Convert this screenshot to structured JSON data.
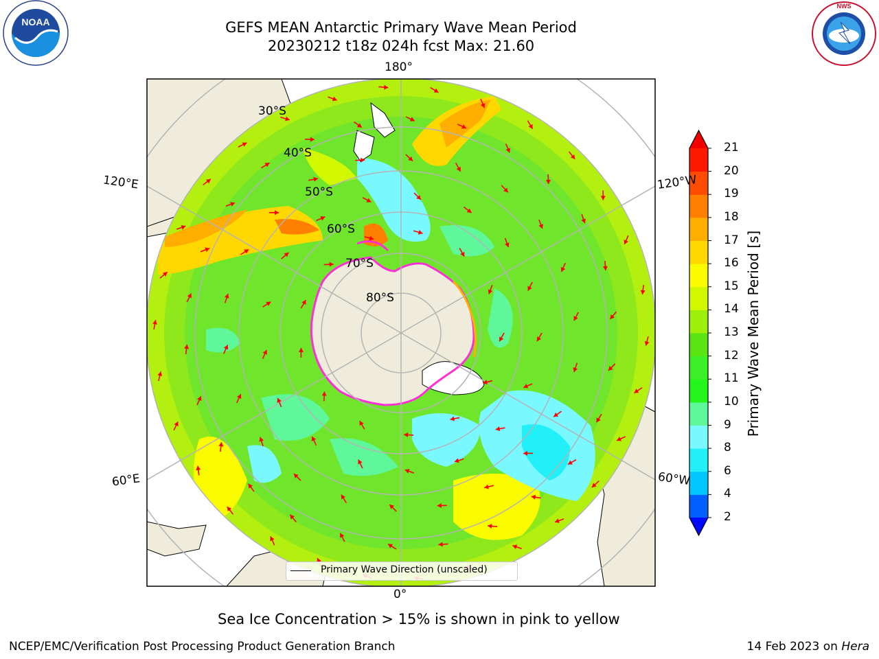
{
  "title": {
    "line1": "GEFS MEAN Antarctic Primary Wave Mean Period",
    "line2": "20230212 t18z 024h fcst   Max: 21.60"
  },
  "logos": {
    "left": {
      "name": "NOAA",
      "text": "NOAA",
      "ring_text": "NATIONAL OCEANIC AND ATMOSPHERIC ADMINISTRATION · U.S. DEPARTMENT OF COMMERCE"
    },
    "right": {
      "name": "National Weather Service",
      "ring_text": "NATIONAL WEATHER SERVICE"
    }
  },
  "map": {
    "projection": "south-polar-stereographic",
    "longitude_labels": {
      "top": "180°",
      "bottom": "0°",
      "upper_left": "120°E",
      "upper_right": "120°W",
      "lower_left": "60°E",
      "lower_right": "60°W"
    },
    "latitude_labels": [
      "30°S",
      "40°S",
      "50°S",
      "60°S",
      "70°S",
      "80°S"
    ],
    "colors": {
      "land": "#efecdc",
      "ocean_base": "#7ce32a",
      "grid": "#b4b4b4",
      "arrow": "#ff0000",
      "sea_ice_edge": "#ff2fd6",
      "coast": "#000000"
    }
  },
  "legend": {
    "label": "Primary Wave Direction (unscaled)"
  },
  "colorbar": {
    "title": "Primary Wave Mean Period [s]",
    "ticks": [
      "2",
      "4",
      "6",
      "8",
      "9",
      "10",
      "11",
      "12",
      "13",
      "14",
      "15",
      "16",
      "17",
      "18",
      "19",
      "20",
      "21"
    ],
    "colors": [
      "#0008ff",
      "#0060ff",
      "#00c8ff",
      "#22f0f8",
      "#7af8ff",
      "#5ef89a",
      "#24f51a",
      "#3cf028",
      "#5ae414",
      "#9ef00a",
      "#d2f800",
      "#fbfb00",
      "#ffd800",
      "#ffae00",
      "#ff7f00",
      "#ff4c00",
      "#ff1800",
      "#f20000"
    ],
    "extend": "both"
  },
  "caption": "Sea Ice Concentration > 15% is shown in pink to yellow",
  "footer": {
    "left": "NCEP/EMC/Verification Post Processing Product Generation Branch",
    "right_date": "14 Feb 2023 on ",
    "right_host": "Hera"
  }
}
